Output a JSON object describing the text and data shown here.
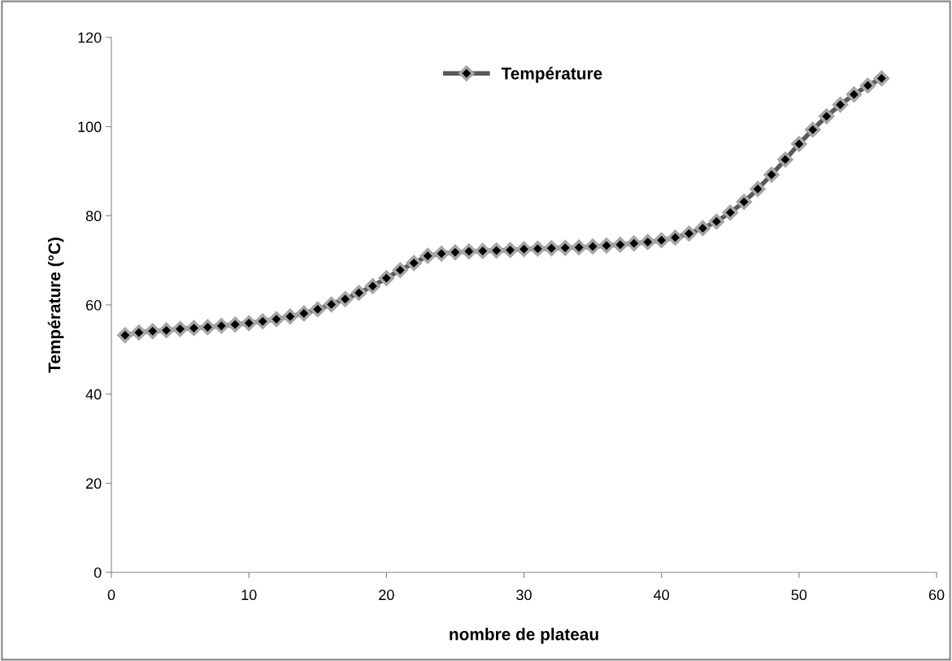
{
  "chart_data": {
    "type": "line",
    "xlabel": "nombre de plateau",
    "ylabel": "Température (°C)",
    "x": [
      1,
      2,
      3,
      4,
      5,
      6,
      7,
      8,
      9,
      10,
      11,
      12,
      13,
      14,
      15,
      16,
      17,
      18,
      19,
      20,
      21,
      22,
      23,
      24,
      25,
      26,
      27,
      28,
      29,
      30,
      31,
      32,
      33,
      34,
      35,
      36,
      37,
      38,
      39,
      40,
      41,
      42,
      43,
      44,
      45,
      46,
      47,
      48,
      49,
      50,
      51,
      52,
      53,
      54,
      55,
      56
    ],
    "series": [
      {
        "name": "Température",
        "color": "#595959",
        "values": [
          53.2,
          53.8,
          54.1,
          54.3,
          54.6,
          54.8,
          55.0,
          55.3,
          55.6,
          55.9,
          56.3,
          56.8,
          57.4,
          58.1,
          59.0,
          60.1,
          61.3,
          62.7,
          64.2,
          66.0,
          67.8,
          69.4,
          71.0,
          71.5,
          71.8,
          72.0,
          72.1,
          72.2,
          72.3,
          72.5,
          72.6,
          72.7,
          72.8,
          72.9,
          73.1,
          73.3,
          73.5,
          73.8,
          74.1,
          74.5,
          75.1,
          76.0,
          77.2,
          78.7,
          80.7,
          83.1,
          86.0,
          89.2,
          92.6,
          96.1,
          99.3,
          102.3,
          104.9,
          107.2,
          109.2,
          110.8
        ]
      }
    ],
    "xlim": [
      0,
      60
    ],
    "xticks": [
      0,
      10,
      20,
      30,
      40,
      50,
      60
    ],
    "ylim": [
      0,
      120
    ],
    "yticks": [
      0,
      20,
      40,
      60,
      80,
      100,
      120
    ],
    "marker": "diamond",
    "line_style": "solid",
    "grid": false,
    "legend": "top"
  }
}
